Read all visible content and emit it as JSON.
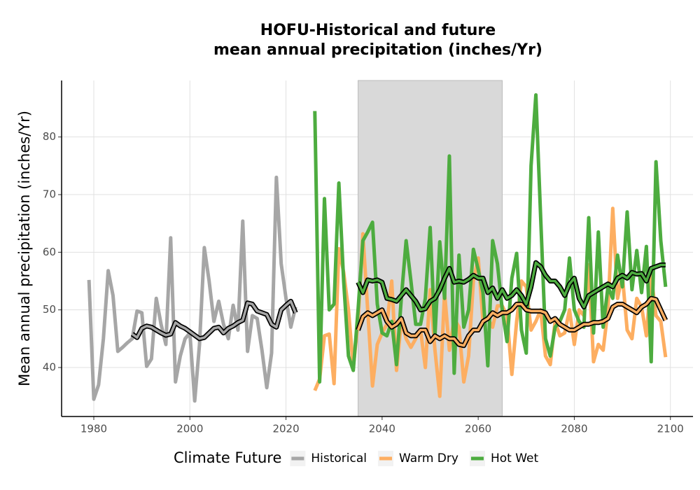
{
  "chart_data": {
    "type": "line",
    "title": "HOFU-Historical and future\nmean annual precipitation (inches/Yr)",
    "ylabel": "Mean annual precipitation (inches/Yr)",
    "legend_title": "Climate Future",
    "xlim": [
      1973.3,
      2104.7
    ],
    "ylim": [
      31.5,
      89.8
    ],
    "xticks": [
      1980,
      2000,
      2020,
      2040,
      2060,
      2080,
      2100
    ],
    "yticks": [
      40,
      50,
      60,
      70,
      80
    ],
    "grid": true,
    "shade": [
      2035,
      2065
    ],
    "shade_color": "#d9d9d9",
    "series": [
      {
        "name": "Historical",
        "color": "#a6a6a6",
        "x": [
          1979,
          1980,
          1981,
          1982,
          1983,
          1984,
          1985,
          1986,
          1987,
          1988,
          1989,
          1990,
          1991,
          1992,
          1993,
          1994,
          1995,
          1996,
          1997,
          1998,
          1999,
          2000,
          2001,
          2002,
          2003,
          2004,
          2005,
          2006,
          2007,
          2008,
          2009,
          2010,
          2011,
          2012,
          2013,
          2014,
          2015,
          2016,
          2017,
          2018,
          2019,
          2020,
          2021,
          2022
        ],
        "values": [
          55.2,
          34.5,
          37,
          45,
          56.8,
          52.5,
          42.8,
          43.5,
          44.3,
          45,
          49.8,
          49.5,
          40.2,
          41.5,
          52,
          47.5,
          44,
          62.5,
          37.5,
          42,
          45,
          46,
          34.2,
          44,
          60.8,
          55,
          48,
          51.5,
          47.5,
          45,
          50.8,
          46.5,
          65.4,
          42.8,
          49,
          48.5,
          43,
          36.5,
          42.5,
          73,
          58,
          52,
          47,
          50.5
        ],
        "smooth_x": [
          1988,
          1989,
          1990,
          1991,
          1992,
          1993,
          1994,
          1995,
          1996,
          1997,
          1998,
          1999,
          2000,
          2001,
          2002,
          2003,
          2004,
          2005,
          2006,
          2007,
          2008,
          2009,
          2010,
          2011,
          2012,
          2013,
          2014,
          2015,
          2016,
          2017,
          2018,
          2019,
          2020,
          2021,
          2022
        ],
        "smooth_values": [
          45.8,
          45.2,
          46.8,
          47.2,
          47,
          46.5,
          46,
          45.6,
          45.8,
          47.8,
          47.2,
          46.8,
          46.2,
          45.6,
          45,
          45.2,
          46,
          46.8,
          47,
          46,
          46.8,
          47.2,
          47.8,
          48.2,
          51.2,
          51,
          49.8,
          49.5,
          49.2,
          47.5,
          47,
          50,
          50.8,
          51.5,
          49.5
        ]
      },
      {
        "name": "Warm Dry",
        "color": "#fdae61",
        "x": [
          2026,
          2027,
          2028,
          2029,
          2030,
          2031,
          2032,
          2033,
          2034,
          2035,
          2036,
          2037,
          2038,
          2039,
          2040,
          2041,
          2042,
          2043,
          2044,
          2045,
          2046,
          2047,
          2048,
          2049,
          2050,
          2051,
          2052,
          2053,
          2054,
          2055,
          2056,
          2057,
          2058,
          2059,
          2060,
          2061,
          2062,
          2063,
          2064,
          2065,
          2066,
          2067,
          2068,
          2069,
          2070,
          2071,
          2072,
          2073,
          2074,
          2075,
          2076,
          2077,
          2078,
          2079,
          2080,
          2081,
          2082,
          2083,
          2084,
          2085,
          2086,
          2087,
          2088,
          2089,
          2090,
          2091,
          2092,
          2093,
          2094,
          2095,
          2096,
          2097,
          2098,
          2099
        ],
        "values": [
          36,
          38,
          45.5,
          45.8,
          37.2,
          60.6,
          56.5,
          50,
          40,
          48,
          63.2,
          50,
          36.8,
          44,
          46,
          47.5,
          55,
          39.5,
          48,
          45,
          43.5,
          45,
          46.5,
          40,
          53.5,
          43,
          35,
          53,
          43,
          48.5,
          47,
          37.5,
          42,
          55,
          59,
          48,
          48.5,
          47,
          50.7,
          50.7,
          49,
          38.8,
          48,
          55,
          54,
          46.5,
          48,
          50,
          42,
          40.5,
          48,
          45.5,
          46,
          50,
          44,
          50,
          49,
          57.8,
          41,
          44,
          43,
          50,
          67.6,
          52,
          56,
          46.5,
          45,
          52,
          50.5,
          45.5,
          56,
          49,
          48,
          41.8
        ],
        "smooth_x": [
          2035,
          2036,
          2037,
          2038,
          2039,
          2040,
          2041,
          2042,
          2043,
          2044,
          2045,
          2046,
          2047,
          2048,
          2049,
          2050,
          2051,
          2052,
          2053,
          2054,
          2055,
          2056,
          2057,
          2058,
          2059,
          2060,
          2061,
          2062,
          2063,
          2064,
          2065,
          2066,
          2067,
          2068,
          2069,
          2070,
          2071,
          2072,
          2073,
          2074,
          2075,
          2076,
          2077,
          2078,
          2079,
          2080,
          2081,
          2082,
          2083,
          2084,
          2085,
          2086,
          2087,
          2088,
          2089,
          2090,
          2091,
          2092,
          2093,
          2094,
          2095,
          2096,
          2097,
          2098,
          2099
        ],
        "smooth_values": [
          46.5,
          48.8,
          49.5,
          49,
          49.5,
          50,
          48,
          47,
          47.5,
          48.5,
          46,
          45.5,
          45.5,
          46.5,
          46.5,
          44.5,
          45.5,
          45,
          45.5,
          45,
          45,
          44,
          43.8,
          45.5,
          46.5,
          46.5,
          48,
          48.5,
          49.5,
          49,
          49.5,
          49.5,
          50,
          51,
          51,
          50,
          49.8,
          49.8,
          49.8,
          49.5,
          48,
          48.5,
          47.5,
          47,
          46.5,
          46.5,
          47,
          47.5,
          47.5,
          47.8,
          47.8,
          48,
          48.5,
          50.5,
          51,
          51,
          50.5,
          50,
          49.5,
          50.5,
          51,
          52,
          51.8,
          50,
          48.2
        ]
      },
      {
        "name": "Hot Wet",
        "color": "#4dac3f",
        "x": [
          2026,
          2027,
          2028,
          2029,
          2030,
          2031,
          2032,
          2033,
          2034,
          2035,
          2036,
          2037,
          2038,
          2039,
          2040,
          2041,
          2042,
          2043,
          2044,
          2045,
          2046,
          2047,
          2048,
          2049,
          2050,
          2051,
          2052,
          2053,
          2054,
          2055,
          2056,
          2057,
          2058,
          2059,
          2060,
          2061,
          2062,
          2063,
          2064,
          2065,
          2066,
          2067,
          2068,
          2069,
          2070,
          2071,
          2072,
          2073,
          2074,
          2075,
          2076,
          2077,
          2078,
          2079,
          2080,
          2081,
          2082,
          2083,
          2084,
          2085,
          2086,
          2087,
          2088,
          2089,
          2090,
          2091,
          2092,
          2093,
          2094,
          2095,
          2096,
          2097,
          2098,
          2099
        ],
        "values": [
          84.5,
          37.5,
          69.3,
          50,
          51,
          72,
          55,
          42,
          39.5,
          50,
          62,
          63.5,
          65.2,
          51,
          46,
          45.5,
          48,
          40.5,
          52,
          62,
          55,
          47.5,
          47.5,
          52,
          64.3,
          45.5,
          61.8,
          52,
          76.7,
          39,
          59.5,
          47,
          50,
          60.5,
          57,
          53,
          40.3,
          62,
          58,
          50,
          44.5,
          55.5,
          59.8,
          46.5,
          42.5,
          75,
          87.3,
          66,
          45,
          42,
          47,
          48,
          50,
          59,
          50,
          48,
          47,
          66,
          46,
          63.5,
          47,
          54,
          52,
          59.5,
          54,
          67,
          53.5,
          60.3,
          53,
          61,
          41,
          75.7,
          62,
          54
        ],
        "smooth_x": [
          2035,
          2036,
          2037,
          2038,
          2039,
          2040,
          2041,
          2042,
          2043,
          2044,
          2045,
          2046,
          2047,
          2048,
          2049,
          2050,
          2051,
          2052,
          2053,
          2054,
          2055,
          2056,
          2057,
          2058,
          2059,
          2060,
          2061,
          2062,
          2063,
          2064,
          2065,
          2066,
          2067,
          2068,
          2069,
          2070,
          2071,
          2072,
          2073,
          2074,
          2075,
          2076,
          2077,
          2078,
          2079,
          2080,
          2081,
          2082,
          2083,
          2084,
          2085,
          2086,
          2087,
          2088,
          2089,
          2090,
          2091,
          2092,
          2093,
          2094,
          2095,
          2096,
          2097,
          2098,
          2099
        ],
        "smooth_values": [
          54.8,
          53,
          55.2,
          55,
          55.2,
          54.8,
          52,
          51.8,
          51.5,
          52.5,
          53.5,
          52.5,
          51.5,
          50,
          50.2,
          51.5,
          52,
          53.5,
          55.5,
          57.2,
          54.8,
          55,
          54.8,
          55.3,
          56,
          55.5,
          55.5,
          53,
          53.8,
          52,
          53.5,
          52,
          52.5,
          53.5,
          52.5,
          51,
          54,
          58.2,
          57.5,
          56,
          55,
          55,
          54,
          52.5,
          54.5,
          55.5,
          52,
          50.5,
          52.5,
          53,
          53.5,
          54,
          54.5,
          54,
          55.5,
          56,
          55.5,
          56.5,
          56.2,
          56.3,
          55,
          57.2,
          57.5,
          57.8,
          57.8
        ]
      }
    ]
  }
}
